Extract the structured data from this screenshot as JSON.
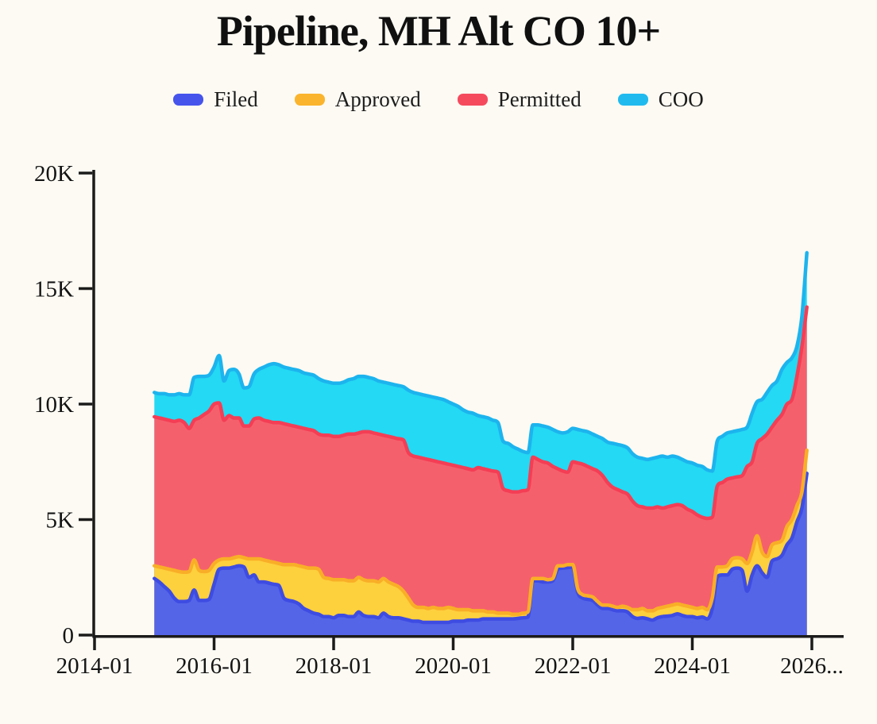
{
  "title": "Pipeline, MH Alt CO 10+",
  "legend": [
    {
      "label": "Filed",
      "color": "#4654ec"
    },
    {
      "label": "Approved",
      "color": "#fbb42d"
    },
    {
      "label": "Permitted",
      "color": "#f54a5e"
    },
    {
      "label": "COO",
      "color": "#20baef"
    }
  ],
  "colors": {
    "background": "#fcfaf3",
    "axis": "#1b1b1b",
    "text": "#141414"
  },
  "chart_data": {
    "type": "area",
    "stacked": true,
    "title": "Pipeline, MH Alt CO 10+",
    "x_start": "2015-01",
    "x_interval": "month",
    "x_end": "2025-12",
    "x_tick_years": [
      2014,
      2016,
      2018,
      2020,
      2022,
      2024,
      2026
    ],
    "x_tick_labels": [
      "2014-01",
      "2016-01",
      "2018-01",
      "2020-01",
      "2022-01",
      "2024-01",
      "2026..."
    ],
    "y_ticks": [
      0,
      5000,
      10000,
      15000,
      20000
    ],
    "y_tick_labels": [
      "0",
      "5K",
      "10K",
      "15K",
      "20K"
    ],
    "ylim": [
      0,
      20000
    ],
    "xlim_years": [
      2014.0,
      2026.55
    ],
    "grid": false,
    "legend_position": "top",
    "series": [
      {
        "name": "Filed",
        "color": "#3e4ce2",
        "fill": "#5565e8",
        "values": [
          2450,
          2300,
          2100,
          1900,
          1600,
          1450,
          1450,
          1500,
          1950,
          1500,
          1500,
          1550,
          2200,
          2850,
          2900,
          2900,
          2950,
          3000,
          2950,
          2500,
          2600,
          2300,
          2300,
          2250,
          2200,
          2150,
          1600,
          1500,
          1450,
          1350,
          1150,
          1050,
          950,
          900,
          800,
          800,
          750,
          850,
          850,
          800,
          800,
          1000,
          850,
          800,
          800,
          750,
          950,
          800,
          750,
          750,
          700,
          650,
          600,
          600,
          550,
          550,
          550,
          550,
          550,
          550,
          600,
          600,
          600,
          650,
          650,
          650,
          700,
          700,
          700,
          700,
          700,
          700,
          700,
          720,
          750,
          780,
          2350,
          2350,
          2300,
          2300,
          2350,
          2850,
          2900,
          2920,
          2950,
          1850,
          1600,
          1550,
          1500,
          1300,
          1150,
          1150,
          1100,
          1050,
          1050,
          1000,
          800,
          720,
          750,
          700,
          650,
          750,
          800,
          820,
          850,
          920,
          850,
          800,
          800,
          750,
          780,
          700,
          1150,
          2500,
          2600,
          2600,
          2850,
          2900,
          2800,
          1900,
          2600,
          3000,
          2700,
          2500,
          3200,
          3300,
          3450,
          3900,
          4200,
          4900,
          5500,
          7000
        ]
      },
      {
        "name": "Approved",
        "color": "#f9ae27",
        "fill": "#fdd03e",
        "values": [
          550,
          650,
          800,
          950,
          1200,
          1300,
          1270,
          1250,
          1300,
          1300,
          1250,
          1250,
          900,
          400,
          400,
          400,
          400,
          400,
          400,
          800,
          700,
          1000,
          950,
          950,
          950,
          950,
          1450,
          1550,
          1600,
          1650,
          1800,
          1850,
          1950,
          1950,
          1700,
          1650,
          1650,
          1550,
          1550,
          1550,
          1550,
          1500,
          1550,
          1550,
          1550,
          1550,
          1500,
          1500,
          1450,
          1350,
          1200,
          950,
          700,
          600,
          650,
          600,
          650,
          600,
          600,
          650,
          550,
          500,
          500,
          450,
          400,
          400,
          350,
          300,
          300,
          250,
          250,
          250,
          200,
          180,
          200,
          220,
          100,
          100,
          150,
          100,
          100,
          150,
          100,
          130,
          100,
          150,
          150,
          150,
          150,
          150,
          150,
          150,
          150,
          150,
          200,
          200,
          300,
          380,
          400,
          350,
          400,
          400,
          400,
          430,
          450,
          430,
          450,
          450,
          400,
          400,
          420,
          400,
          450,
          450,
          350,
          400,
          450,
          450,
          500,
          1200,
          1000,
          1300,
          900,
          900,
          700,
          700,
          650,
          800,
          800,
          700,
          700,
          1000
        ]
      },
      {
        "name": "Permitted",
        "color": "#f43e55",
        "fill": "#f5606d",
        "values": [
          6450,
          6450,
          6450,
          6450,
          6450,
          6550,
          6480,
          6200,
          6050,
          6600,
          6800,
          6900,
          6900,
          6800,
          6000,
          6200,
          6050,
          6000,
          5700,
          5750,
          6050,
          6100,
          6050,
          6050,
          6050,
          6100,
          6100,
          6050,
          6000,
          6000,
          6000,
          6000,
          5950,
          5850,
          6150,
          6200,
          6200,
          6200,
          6250,
          6350,
          6350,
          6250,
          6400,
          6450,
          6400,
          6400,
          6200,
          6300,
          6350,
          6400,
          6550,
          6300,
          6450,
          6500,
          6450,
          6450,
          6350,
          6350,
          6300,
          6200,
          6200,
          6200,
          6150,
          6100,
          6100,
          6200,
          6150,
          6150,
          6100,
          6100,
          5400,
          5300,
          5300,
          5300,
          5300,
          5300,
          5250,
          5150,
          5050,
          5050,
          4850,
          4200,
          4100,
          4000,
          4450,
          5450,
          5650,
          5600,
          5550,
          5650,
          5600,
          5300,
          5150,
          5100,
          4950,
          4900,
          4700,
          4500,
          4400,
          4450,
          4450,
          4400,
          4300,
          4300,
          4300,
          4300,
          4300,
          4200,
          4150,
          4050,
          3900,
          3950,
          3500,
          3500,
          3650,
          3750,
          3500,
          3500,
          3600,
          4200,
          3900,
          4000,
          4900,
          5300,
          5100,
          5300,
          5450,
          5300,
          5200,
          5600,
          6300,
          6200
        ]
      },
      {
        "name": "COO",
        "color": "#1cb4ee",
        "fill": "#24d9f3",
        "values": [
          1050,
          1050,
          1100,
          1100,
          1150,
          1150,
          1200,
          1450,
          1850,
          1800,
          1650,
          1550,
          1600,
          2050,
          1700,
          1950,
          2100,
          1900,
          1650,
          1700,
          1950,
          2100,
          2300,
          2450,
          2550,
          2500,
          2450,
          2450,
          2450,
          2450,
          2400,
          2400,
          2400,
          2400,
          2350,
          2300,
          2300,
          2300,
          2300,
          2350,
          2400,
          2450,
          2400,
          2350,
          2350,
          2300,
          2300,
          2300,
          2300,
          2300,
          2300,
          2700,
          2750,
          2750,
          2750,
          2750,
          2750,
          2750,
          2750,
          2700,
          2650,
          2600,
          2500,
          2450,
          2450,
          2250,
          2250,
          2250,
          2200,
          2150,
          2050,
          2050,
          1950,
          1850,
          1700,
          1600,
          1400,
          1500,
          1550,
          1550,
          1600,
          1600,
          1650,
          1750,
          1450,
          1450,
          1450,
          1500,
          1500,
          1500,
          1600,
          1750,
          1900,
          1950,
          2000,
          2000,
          2050,
          2100,
          2100,
          2100,
          2150,
          2150,
          2250,
          2150,
          2150,
          2050,
          2000,
          2050,
          2100,
          2150,
          2200,
          2100,
          2000,
          1950,
          2000,
          2000,
          2000,
          2000,
          2000,
          1700,
          2100,
          1800,
          1700,
          1800,
          1800,
          1700,
          1950,
          1800,
          1800,
          1300,
          1300,
          2350
        ]
      }
    ]
  }
}
